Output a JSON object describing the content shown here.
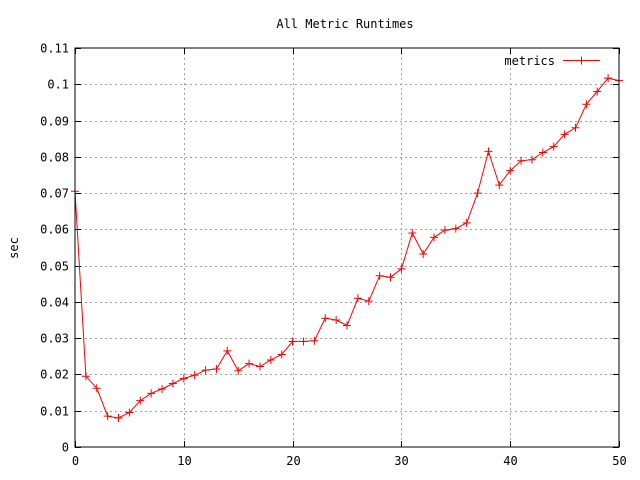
{
  "chart_data": {
    "type": "line",
    "title": "All Metric Runtimes",
    "xlabel": "",
    "ylabel": "sec",
    "xlim": [
      0,
      50
    ],
    "ylim": [
      0,
      0.11
    ],
    "x_ticks": [
      0,
      10,
      20,
      30,
      40,
      50
    ],
    "x_tick_labels": [
      "0",
      "10",
      "20",
      "30",
      "40",
      "50"
    ],
    "y_ticks": [
      0,
      0.01,
      0.02,
      0.03,
      0.04,
      0.05,
      0.06,
      0.07,
      0.08,
      0.09,
      0.1,
      0.11
    ],
    "y_tick_labels": [
      "0",
      "0.01",
      "0.02",
      "0.03",
      "0.04",
      "0.05",
      "0.06",
      "0.07",
      "0.08",
      "0.09",
      "0.1",
      "0.11"
    ],
    "grid": true,
    "legend_position": "top-right",
    "colors": {
      "series": "#ff0000",
      "grid": "#a0a0a0",
      "axis": "#000000"
    },
    "series": [
      {
        "name": "metrics",
        "marker": "plus",
        "x": [
          0,
          1,
          2,
          3,
          4,
          5,
          6,
          7,
          8,
          9,
          10,
          11,
          12,
          13,
          14,
          15,
          16,
          17,
          18,
          19,
          20,
          21,
          22,
          23,
          24,
          25,
          26,
          27,
          28,
          29,
          30,
          31,
          32,
          33,
          34,
          35,
          36,
          37,
          38,
          39,
          40,
          41,
          42,
          43,
          44,
          45,
          46,
          47,
          48,
          49,
          50
        ],
        "y": [
          0.0705,
          0.0195,
          0.0162,
          0.0085,
          0.008,
          0.0095,
          0.0128,
          0.0148,
          0.016,
          0.0175,
          0.0189,
          0.0198,
          0.0212,
          0.0215,
          0.0265,
          0.021,
          0.023,
          0.0222,
          0.024,
          0.0255,
          0.0291,
          0.0291,
          0.0293,
          0.0355,
          0.035,
          0.0335,
          0.041,
          0.0402,
          0.0472,
          0.0468,
          0.0491,
          0.059,
          0.0532,
          0.0578,
          0.0598,
          0.0602,
          0.0618,
          0.07,
          0.0815,
          0.0722,
          0.0762,
          0.0789,
          0.0792,
          0.0812,
          0.0828,
          0.0862,
          0.088,
          0.0945,
          0.098,
          0.1017,
          0.101
        ]
      }
    ]
  }
}
